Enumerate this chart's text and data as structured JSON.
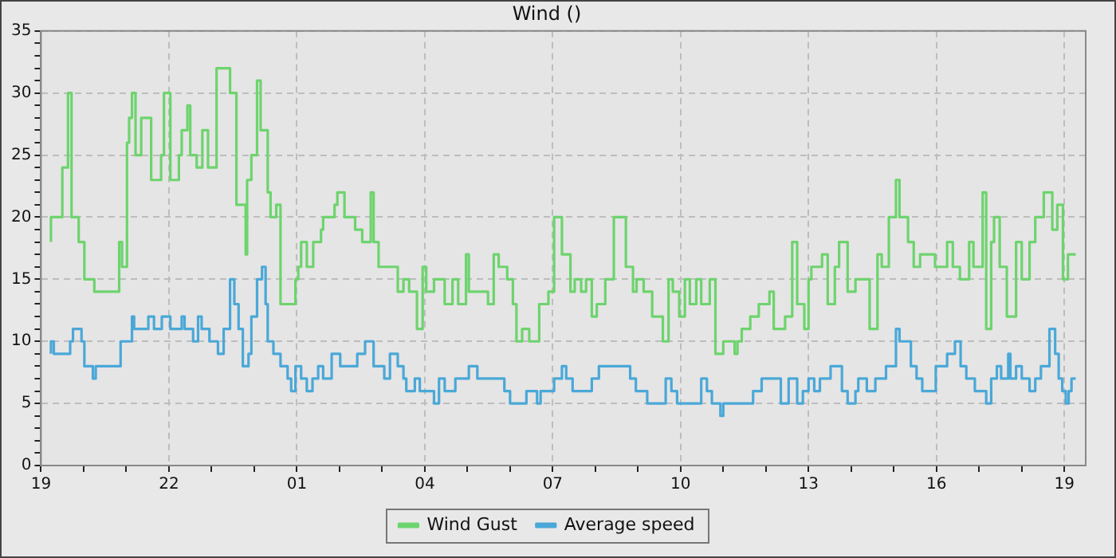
{
  "chart_data": {
    "type": "step",
    "title": "Wind ()",
    "legend": "bottom",
    "grid": true,
    "line_style": "solid",
    "marker": "none",
    "xlim": [
      "--01-01T19:00",
      "--01-02T19:30"
    ],
    "xticks": [
      {
        "value": "--01-01T19:00",
        "label": "19"
      },
      {
        "value": "--01-01T20:00",
        "label": null
      },
      {
        "value": "--01-01T21:00",
        "label": null
      },
      {
        "value": "--01-01T22:00",
        "label": "22"
      },
      {
        "value": "--01-01T23:00",
        "label": null
      },
      {
        "value": "--01-02T00:00",
        "label": null
      },
      {
        "value": "--01-02T01:00",
        "label": "01"
      },
      {
        "value": "--01-02T02:00",
        "label": null
      },
      {
        "value": "--01-02T03:00",
        "label": null
      },
      {
        "value": "--01-02T04:00",
        "label": "04"
      },
      {
        "value": "--01-02T05:00",
        "label": null
      },
      {
        "value": "--01-02T06:00",
        "label": null
      },
      {
        "value": "--01-02T07:00",
        "label": "07"
      },
      {
        "value": "--01-02T08:00",
        "label": null
      },
      {
        "value": "--01-02T09:00",
        "label": null
      },
      {
        "value": "--01-02T10:00",
        "label": "10"
      },
      {
        "value": "--01-02T11:00",
        "label": null
      },
      {
        "value": "--01-02T12:00",
        "label": null
      },
      {
        "value": "--01-02T13:00",
        "label": "13"
      },
      {
        "value": "--01-02T14:00",
        "label": null
      },
      {
        "value": "--01-02T15:00",
        "label": null
      },
      {
        "value": "--01-02T16:00",
        "label": "16"
      },
      {
        "value": "--01-02T17:00",
        "label": null
      },
      {
        "value": "--01-02T18:00",
        "label": null
      },
      {
        "value": "--01-02T19:00",
        "label": "19"
      }
    ],
    "ylim": [
      0,
      35
    ],
    "yticks": [
      0,
      {
        "value": 1,
        "label": null
      },
      {
        "value": 2,
        "label": null
      },
      {
        "value": 3,
        "label": null
      },
      {
        "value": 4,
        "label": null
      },
      5,
      {
        "value": 6,
        "label": null
      },
      {
        "value": 7,
        "label": null
      },
      {
        "value": 8,
        "label": null
      },
      {
        "value": 9,
        "label": null
      },
      10,
      {
        "value": 11,
        "label": null
      },
      {
        "value": 12,
        "label": null
      },
      {
        "value": 13,
        "label": null
      },
      {
        "value": 14,
        "label": null
      },
      15,
      {
        "value": 16,
        "label": null
      },
      {
        "value": 17,
        "label": null
      },
      {
        "value": 18,
        "label": null
      },
      {
        "value": 19,
        "label": null
      },
      20,
      {
        "value": 21,
        "label": null
      },
      {
        "value": 22,
        "label": null
      },
      {
        "value": 23,
        "label": null
      },
      {
        "value": 24,
        "label": null
      },
      25,
      {
        "value": 26,
        "label": null
      },
      {
        "value": 27,
        "label": null
      },
      {
        "value": 28,
        "label": null
      },
      {
        "value": 29,
        "label": null
      },
      30,
      {
        "value": 31,
        "label": null
      },
      {
        "value": 32,
        "label": null
      },
      {
        "value": 33,
        "label": null
      },
      {
        "value": 34,
        "label": null
      },
      35
    ],
    "series": [
      {
        "name": "Wind Gust",
        "color": "#6dd46d",
        "x": [
          "--01-01T19:14",
          "--01-01T19:30",
          "--01-01T19:38",
          "--01-01T19:43",
          "--01-01T19:53",
          "--01-01T20:01",
          "--01-01T20:15",
          "--01-01T20:50",
          "--01-01T20:54",
          "--01-01T21:01",
          "--01-01T21:04",
          "--01-01T21:08",
          "--01-01T21:13",
          "--01-01T21:21",
          "--01-01T21:35",
          "--01-01T21:49",
          "--01-01T21:53",
          "--01-01T22:02",
          "--01-01T22:14",
          "--01-01T22:18",
          "--01-01T22:26",
          "--01-01T22:30",
          "--01-01T22:39",
          "--01-01T22:47",
          "--01-01T22:55",
          "--01-01T23:07",
          "--01-01T23:26",
          "--01-01T23:35",
          "--01-01T23:48",
          "--01-01T23:50",
          "--01-01T23:56",
          "--01-02T00:04",
          "--01-02T00:09",
          "--01-02T00:19",
          "--01-02T00:23",
          "--01-02T00:31",
          "--01-02T00:37",
          "--01-02T00:58",
          "--01-02T01:02",
          "--01-02T01:06",
          "--01-02T01:14",
          "--01-02T01:23",
          "--01-02T01:34",
          "--01-02T01:37",
          "--01-02T01:53",
          "--01-02T01:57",
          "--01-02T02:07",
          "--01-02T02:22",
          "--01-02T02:32",
          "--01-02T02:44",
          "--01-02T02:48",
          "--01-02T02:55",
          "--01-02T03:22",
          "--01-02T03:30",
          "--01-02T03:38",
          "--01-02T03:49",
          "--01-02T03:57",
          "--01-02T04:02",
          "--01-02T04:13",
          "--01-02T04:28",
          "--01-02T04:39",
          "--01-02T04:47",
          "--01-02T04:58",
          "--01-02T05:02",
          "--01-02T05:29",
          "--01-02T05:37",
          "--01-02T05:44",
          "--01-02T05:56",
          "--01-02T06:04",
          "--01-02T06:09",
          "--01-02T06:17",
          "--01-02T06:27",
          "--01-02T06:41",
          "--01-02T06:54",
          "--01-02T07:02",
          "--01-02T07:13",
          "--01-02T07:25",
          "--01-02T07:31",
          "--01-02T07:40",
          "--01-02T07:47",
          "--01-02T07:55",
          "--01-02T08:02",
          "--01-02T08:14",
          "--01-02T08:26",
          "--01-02T08:43",
          "--01-02T08:53",
          "--01-02T08:58",
          "--01-02T09:08",
          "--01-02T09:20",
          "--01-02T09:35",
          "--01-02T09:43",
          "--01-02T09:49",
          "--01-02T09:58",
          "--01-02T10:06",
          "--01-02T10:13",
          "--01-02T10:22",
          "--01-02T10:29",
          "--01-02T10:41",
          "--01-02T10:49",
          "--01-02T11:00",
          "--01-02T11:16",
          "--01-02T11:20",
          "--01-02T11:26",
          "--01-02T11:38",
          "--01-02T11:50",
          "--01-02T12:05",
          "--01-02T12:11",
          "--01-02T12:27",
          "--01-02T12:37",
          "--01-02T12:44",
          "--01-02T12:54",
          "--01-02T13:00",
          "--01-02T13:04",
          "--01-02T13:19",
          "--01-02T13:27",
          "--01-02T13:37",
          "--01-02T13:43",
          "--01-02T13:55",
          "--01-02T14:06",
          "--01-02T14:26",
          "--01-02T14:37",
          "--01-02T14:43",
          "--01-02T14:53",
          "--01-02T15:03",
          "--01-02T15:08",
          "--01-02T15:20",
          "--01-02T15:28",
          "--01-02T15:37",
          "--01-02T15:58",
          "--01-02T16:15",
          "--01-02T16:23",
          "--01-02T16:33",
          "--01-02T16:46",
          "--01-02T16:52",
          "--01-02T17:05",
          "--01-02T17:10",
          "--01-02T17:17",
          "--01-02T17:21",
          "--01-02T17:29",
          "--01-02T17:39",
          "--01-02T17:52",
          "--01-02T18:00",
          "--01-02T18:11",
          "--01-02T18:19",
          "--01-02T18:31",
          "--01-02T18:43",
          "--01-02T18:50",
          "--01-02T18:58",
          "--01-02T19:05",
          "--01-02T19:10",
          "--01-02T19:16"
        ],
        "values": [
          18,
          20,
          24,
          30,
          20,
          18,
          15,
          14,
          18,
          16,
          26,
          28,
          30,
          25,
          28,
          23,
          25,
          30,
          23,
          25,
          27,
          29,
          25,
          24,
          27,
          24,
          32,
          30,
          21,
          17,
          23,
          25,
          31,
          27,
          22,
          20,
          21,
          13,
          15,
          16,
          18,
          16,
          18,
          19,
          20,
          21,
          22,
          20,
          19,
          18,
          22,
          18,
          16,
          14,
          15,
          14,
          11,
          16,
          14,
          15,
          13,
          15,
          13,
          17,
          14,
          13,
          17,
          16,
          15,
          13,
          10,
          11,
          10,
          13,
          14,
          20,
          17,
          14,
          15,
          14,
          15,
          12,
          13,
          15,
          20,
          16,
          14,
          15,
          14,
          12,
          10,
          15,
          14,
          12,
          15,
          13,
          15,
          13,
          15,
          9,
          10,
          9,
          10,
          11,
          12,
          13,
          14,
          11,
          12,
          18,
          13,
          11,
          15,
          16,
          17,
          13,
          16,
          18,
          14,
          15,
          11,
          17,
          16,
          20,
          23,
          20,
          18,
          16,
          17,
          16,
          18,
          16,
          15,
          18,
          16,
          22,
          11,
          18,
          20,
          16,
          12,
          18,
          15,
          18,
          20,
          22,
          19,
          21,
          15,
          17,
          17
        ]
      },
      {
        "name": "Average speed",
        "color": "#4aa8d8",
        "x": [
          "--01-01T19:14",
          "--01-01T19:18",
          "--01-01T19:41",
          "--01-01T19:45",
          "--01-01T19:57",
          "--01-01T20:01",
          "--01-01T20:13",
          "--01-01T20:17",
          "--01-01T20:52",
          "--01-01T21:08",
          "--01-01T21:11",
          "--01-01T21:31",
          "--01-01T21:39",
          "--01-01T21:50",
          "--01-01T22:02",
          "--01-01T22:18",
          "--01-01T22:22",
          "--01-01T22:34",
          "--01-01T22:41",
          "--01-01T22:46",
          "--01-01T22:57",
          "--01-01T23:09",
          "--01-01T23:17",
          "--01-01T23:26",
          "--01-01T23:32",
          "--01-01T23:38",
          "--01-01T23:44",
          "--01-01T23:52",
          "--01-01T23:56",
          "--01-02T00:04",
          "--01-02T00:11",
          "--01-02T00:16",
          "--01-02T00:19",
          "--01-02T00:27",
          "--01-02T00:37",
          "--01-02T00:47",
          "--01-02T00:52",
          "--01-02T00:58",
          "--01-02T01:06",
          "--01-02T01:14",
          "--01-02T01:22",
          "--01-02T01:30",
          "--01-02T01:37",
          "--01-02T01:49",
          "--01-02T02:01",
          "--01-02T02:25",
          "--01-02T02:36",
          "--01-02T02:48",
          "--01-02T03:03",
          "--01-02T03:11",
          "--01-02T03:22",
          "--01-02T03:30",
          "--01-02T03:34",
          "--01-02T03:46",
          "--01-02T03:53",
          "--01-02T04:13",
          "--01-02T04:20",
          "--01-02T04:28",
          "--01-02T04:43",
          "--01-02T05:02",
          "--01-02T05:14",
          "--01-02T05:52",
          "--01-02T06:00",
          "--01-02T06:23",
          "--01-02T06:38",
          "--01-02T06:43",
          "--01-02T07:02",
          "--01-02T07:13",
          "--01-02T07:19",
          "--01-02T07:28",
          "--01-02T07:55",
          "--01-02T08:05",
          "--01-02T08:49",
          "--01-02T08:57",
          "--01-02T09:13",
          "--01-02T09:39",
          "--01-02T09:47",
          "--01-02T09:55",
          "--01-02T10:29",
          "--01-02T10:37",
          "--01-02T10:44",
          "--01-02T10:56",
          "--01-02T11:00",
          "--01-02T11:42",
          "--01-02T11:54",
          "--01-02T12:21",
          "--01-02T12:32",
          "--01-02T12:44",
          "--01-02T12:52",
          "--01-02T13:00",
          "--01-02T13:08",
          "--01-02T13:16",
          "--01-02T13:31",
          "--01-02T13:47",
          "--01-02T13:55",
          "--01-02T14:06",
          "--01-02T14:10",
          "--01-02T14:22",
          "--01-02T14:34",
          "--01-02T14:49",
          "--01-02T15:03",
          "--01-02T15:08",
          "--01-02T15:24",
          "--01-02T15:32",
          "--01-02T15:40",
          "--01-02T15:59",
          "--01-02T16:15",
          "--01-02T16:26",
          "--01-02T16:34",
          "--01-02T16:42",
          "--01-02T16:54",
          "--01-02T17:10",
          "--01-02T17:17",
          "--01-02T17:25",
          "--01-02T17:31",
          "--01-02T17:41",
          "--01-02T17:44",
          "--01-02T17:52",
          "--01-02T18:00",
          "--01-02T18:11",
          "--01-02T18:19",
          "--01-02T18:27",
          "--01-02T18:39",
          "--01-02T18:47",
          "--01-02T18:52",
          "--01-02T18:57",
          "--01-02T19:02",
          "--01-02T19:06",
          "--01-02T19:10",
          "--01-02T19:16"
        ],
        "values": [
          9,
          10,
          9,
          10,
          11,
          10,
          8,
          7,
          8,
          10,
          12,
          11,
          12,
          11,
          12,
          11,
          12,
          11,
          10,
          12,
          11,
          10,
          9,
          11,
          15,
          13,
          11,
          8,
          9,
          12,
          15,
          16,
          13,
          10,
          9,
          8,
          7,
          6,
          8,
          7,
          6,
          7,
          8,
          7,
          9,
          8,
          9,
          10,
          8,
          7,
          9,
          8,
          7,
          6,
          7,
          6,
          5,
          7,
          6,
          7,
          8,
          7,
          6,
          5,
          6,
          5,
          6,
          7,
          8,
          7,
          6,
          7,
          8,
          7,
          6,
          5,
          7,
          6,
          5,
          7,
          6,
          5,
          4,
          5,
          6,
          7,
          5,
          7,
          5,
          6,
          7,
          6,
          7,
          8,
          6,
          5,
          6,
          7,
          6,
          7,
          8,
          11,
          10,
          8,
          7,
          6,
          8,
          9,
          10,
          8,
          7,
          6,
          5,
          7,
          8,
          7,
          9,
          7,
          8,
          7,
          6,
          7,
          8,
          11,
          9,
          7,
          6,
          5,
          6,
          7
        ]
      }
    ]
  }
}
